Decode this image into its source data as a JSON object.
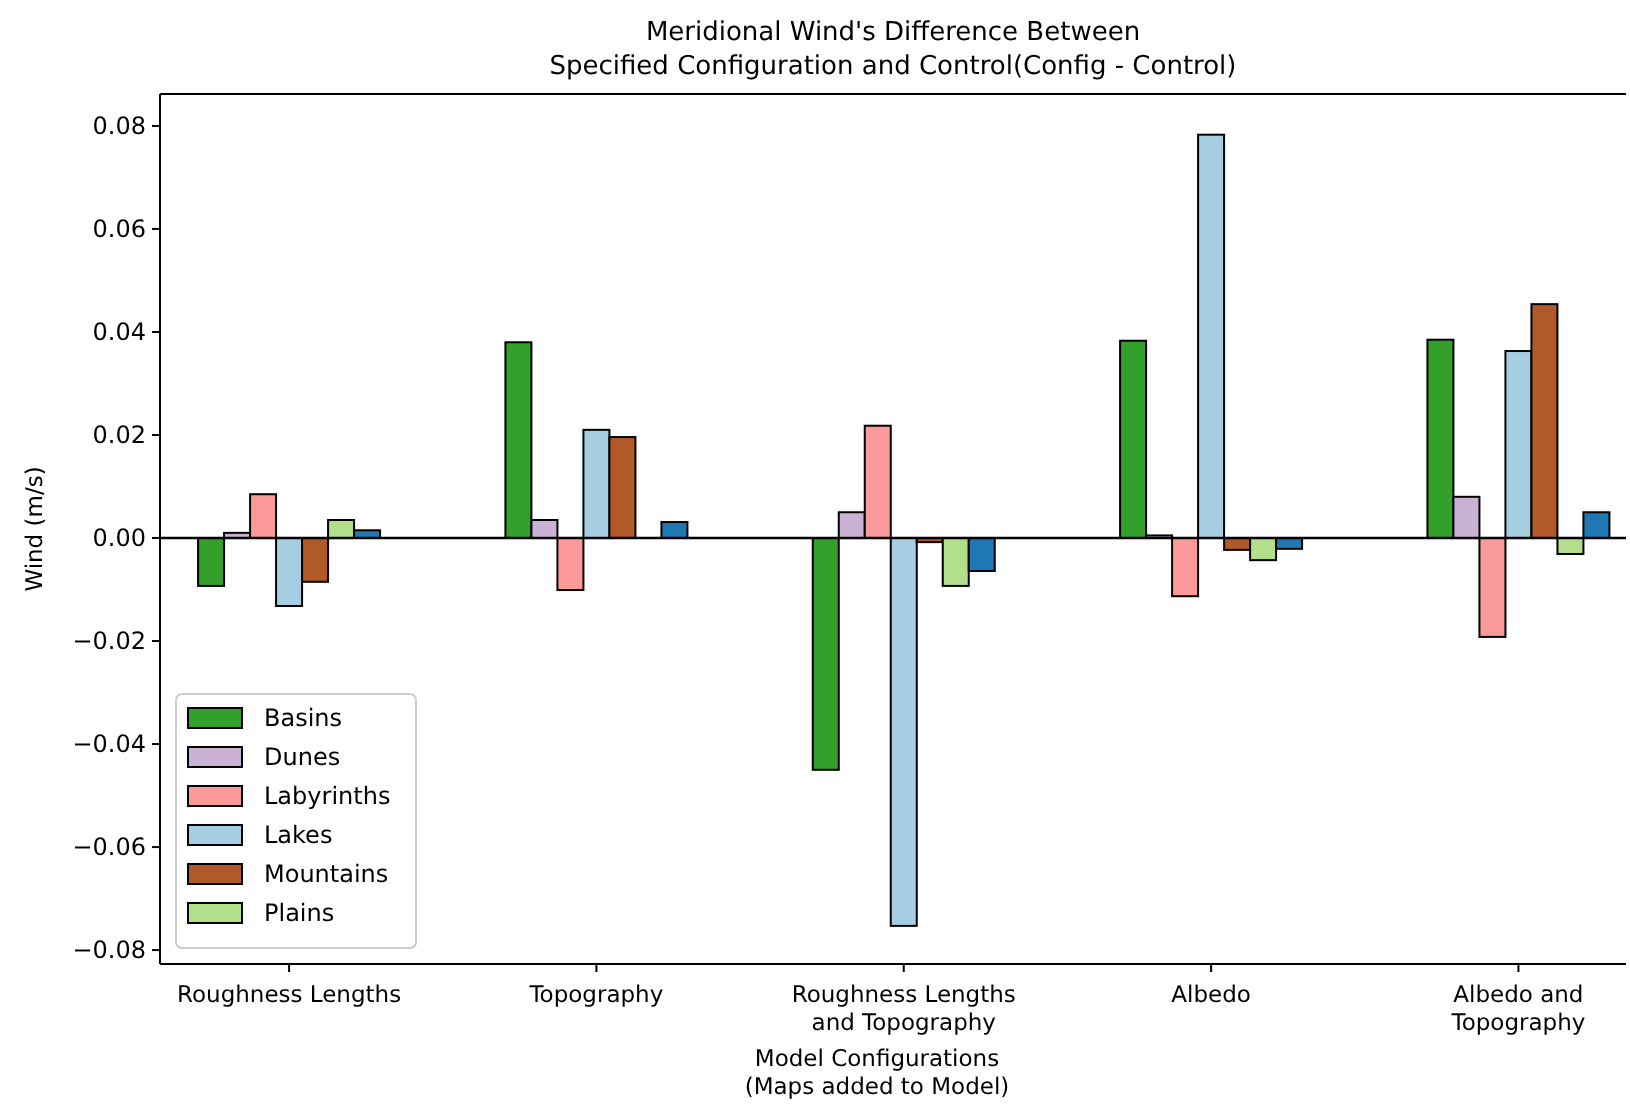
{
  "chart_data": {
    "type": "bar",
    "title": "Meridional Wind's Difference Between\nSpecified Configuration and Control(Config - Control)",
    "xlabel": "Model Configurations\n(Maps added to Model)",
    "ylabel": "Wind (m/s)",
    "categories": [
      "Roughness Lengths",
      "Topography",
      "Roughness Lengths\nand Topography",
      "Albedo",
      "Albedo and\nTopography"
    ],
    "series": [
      {
        "name": "Basins",
        "color": "#33a02c",
        "values": [
          -0.0093,
          0.038,
          -0.045,
          0.0383,
          0.0385
        ]
      },
      {
        "name": "Dunes",
        "color": "#cab2d6",
        "values": [
          0.001,
          0.0035,
          0.005,
          0.0005,
          0.008
        ]
      },
      {
        "name": "Labyrinths",
        "color": "#fb9a99",
        "values": [
          0.0085,
          -0.0101,
          0.0218,
          -0.0113,
          -0.0192
        ]
      },
      {
        "name": "Lakes",
        "color": "#a6cee3",
        "values": [
          -0.0132,
          0.021,
          -0.0753,
          0.0783,
          0.0363
        ]
      },
      {
        "name": "Mountains",
        "color": "#b15928",
        "values": [
          -0.0085,
          0.0196,
          -0.0008,
          -0.0023,
          0.0454
        ]
      },
      {
        "name": "Plains",
        "color": "#b2df8a",
        "values": [
          0.0035,
          0,
          -0.0093,
          -0.0043,
          -0.0031
        ]
      },
      {
        "color": "#1f78b4",
        "values": [
          0.0015,
          0.0031,
          -0.0064,
          -0.0021,
          0.005
        ]
      }
    ],
    "ylim": [
      -0.0827,
      0.0862
    ],
    "yticks": [
      {
        "value": -0.08,
        "label": "−0.08"
      },
      {
        "value": -0.06,
        "label": "−0.06"
      },
      {
        "value": -0.04,
        "label": "−0.04"
      },
      {
        "value": -0.02,
        "label": "−0.02"
      },
      {
        "value": 0,
        "label": "0.00"
      },
      {
        "value": 0.02,
        "label": "0.02"
      },
      {
        "value": 0.04,
        "label": "0.04"
      },
      {
        "value": 0.06,
        "label": "0.06"
      },
      {
        "value": 0.08,
        "label": "0.08"
      }
    ],
    "ref_lines": [
      {
        "axis": "y",
        "value": 0,
        "color": "#000000"
      }
    ],
    "grid": false,
    "legend": "bottom left"
  }
}
